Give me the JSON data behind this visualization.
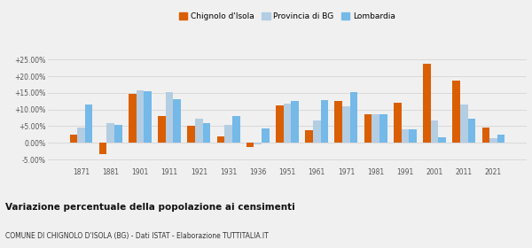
{
  "years": [
    1871,
    1881,
    1901,
    1911,
    1921,
    1931,
    1936,
    1951,
    1961,
    1971,
    1981,
    1991,
    2001,
    2011,
    2021
  ],
  "chignolo": [
    2.5,
    -3.5,
    14.7,
    8.0,
    5.0,
    2.0,
    -1.2,
    11.2,
    3.8,
    12.5,
    8.5,
    12.0,
    23.8,
    18.8,
    4.7
  ],
  "provincia": [
    4.5,
    5.8,
    15.8,
    15.2,
    7.3,
    5.5,
    -0.5,
    11.9,
    6.6,
    11.0,
    8.5,
    4.0,
    6.8,
    11.5,
    1.5
  ],
  "lombardia": [
    11.5,
    5.5,
    15.5,
    13.2,
    6.0,
    8.0,
    4.2,
    12.5,
    12.9,
    15.3,
    8.5,
    4.0,
    1.8,
    7.3,
    2.5
  ],
  "color_chignolo": "#d95f02",
  "color_provincia": "#b3cde3",
  "color_lombardia": "#74b9e8",
  "title": "Variazione percentuale della popolazione ai censimenti",
  "subtitle": "COMUNE DI CHIGNOLO D'ISOLA (BG) - Dati ISTAT - Elaborazione TUTTITALIA.IT",
  "legend_labels": [
    "Chignolo d'Isola",
    "Provincia di BG",
    "Lombardia"
  ],
  "ylim": [
    -7.0,
    28.0
  ],
  "yticks": [
    -5.0,
    0.0,
    5.0,
    10.0,
    15.0,
    20.0,
    25.0
  ],
  "ytick_labels": [
    "-5.00%",
    "0.00%",
    "+5.00%",
    "+10.00%",
    "+15.00%",
    "+20.00%",
    "+25.00%"
  ],
  "background_color": "#f0f0f0",
  "bar_width": 0.26
}
